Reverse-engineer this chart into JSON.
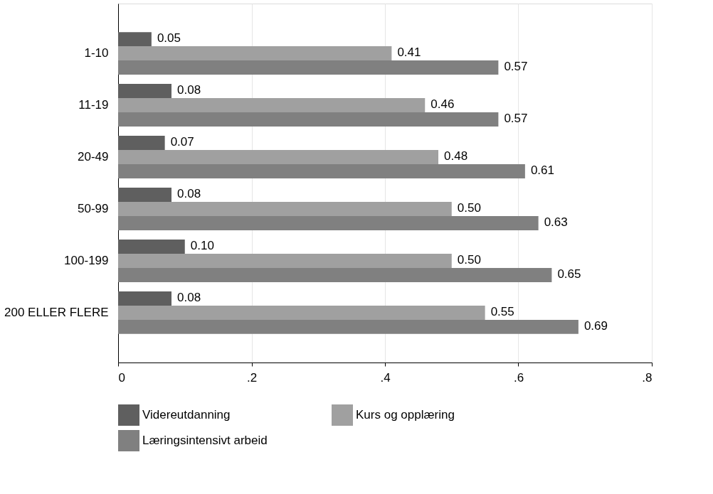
{
  "chart_data": {
    "type": "bar",
    "orientation": "horizontal",
    "categories": [
      "1-10",
      "11-19",
      "20-49",
      "50-99",
      "100-199",
      "200 ELLER FLERE"
    ],
    "series": [
      {
        "name": "Videreutdanning",
        "color": "#5f5f5f",
        "values": [
          0.05,
          0.08,
          0.07,
          0.08,
          0.1,
          0.08
        ],
        "value_labels": [
          "0.05",
          "0.08",
          "0.07",
          "0.08",
          "0.10",
          "0.08"
        ]
      },
      {
        "name": "Kurs og opplæring",
        "color": "#a0a0a0",
        "values": [
          0.41,
          0.46,
          0.48,
          0.5,
          0.5,
          0.55
        ],
        "value_labels": [
          "0.41",
          "0.46",
          "0.48",
          "0.50",
          "0.50",
          "0.55"
        ]
      },
      {
        "name": "Læringsintensivt arbeid",
        "color": "#808080",
        "values": [
          0.57,
          0.57,
          0.61,
          0.63,
          0.65,
          0.69
        ],
        "value_labels": [
          "0.57",
          "0.57",
          "0.61",
          "0.63",
          "0.65",
          "0.69"
        ]
      }
    ],
    "xlim": [
      0,
      0.8
    ],
    "xticks": [
      0,
      {
        "value": 0.2,
        "label": ".2"
      },
      {
        "value": 0.4,
        "label": ".4"
      },
      {
        "value": 0.6,
        "label": ".6"
      },
      {
        "value": 0.8,
        "label": ".8"
      }
    ],
    "grid": "x",
    "legend": "bottom"
  }
}
